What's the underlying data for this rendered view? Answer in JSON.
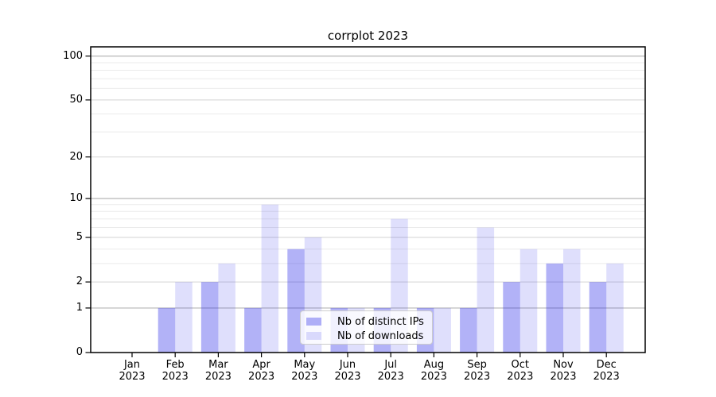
{
  "figure": {
    "title": "corrplot 2023",
    "background_color": "#ffffff"
  },
  "chart_data": {
    "type": "bar",
    "title": "corrplot 2023",
    "categories": [
      "Jan 2023",
      "Feb 2023",
      "Mar 2023",
      "Apr 2023",
      "May 2023",
      "Jun 2023",
      "Jul 2023",
      "Aug 2023",
      "Sep 2023",
      "Oct 2023",
      "Nov 2023",
      "Dec 2023"
    ],
    "series": [
      {
        "name": "Nb of distinct IPs",
        "values": [
          0,
          1,
          2,
          1,
          4,
          1,
          1,
          1,
          1,
          2,
          3,
          2
        ],
        "color": "rgba(28,28,232,0.34)",
        "solid_color": "#a9a9f7"
      },
      {
        "name": "Nb of downloads",
        "values": [
          0,
          2,
          3,
          9,
          5,
          1,
          7,
          1,
          6,
          4,
          4,
          3
        ],
        "color": "rgba(28,28,232,0.14)",
        "solid_color": "#dadaf9"
      }
    ],
    "xlabel": "",
    "ylabel": "",
    "yscale": "log1p",
    "yticks": [
      0,
      1,
      2,
      5,
      10,
      20,
      50,
      100
    ],
    "mid_yticks": [
      2,
      5,
      20,
      50
    ],
    "minor_yticks": [
      3,
      4,
      6,
      7,
      8,
      9,
      30,
      40,
      60,
      70,
      80,
      90
    ],
    "strong_yticks": [
      1,
      10,
      100
    ],
    "ylim": [
      0,
      116
    ],
    "grid": "horizontal",
    "legend_position": "lower-center-inside",
    "axis_color": "#000000",
    "grid_strong_color": "#b6b6b6",
    "grid_mid_color": "#dcdcdc",
    "grid_minor_color": "#ebebeb"
  },
  "legend": {
    "items": [
      "Nb of distinct IPs",
      "Nb of downloads"
    ]
  }
}
